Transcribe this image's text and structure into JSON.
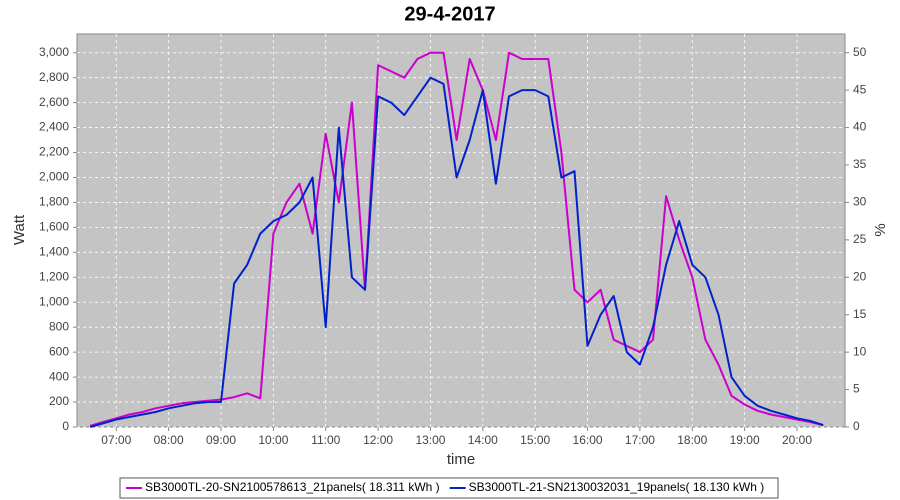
{
  "chart_data": {
    "type": "line",
    "title": "29-4-2017",
    "xlabel": "time",
    "ylabel": "Watt",
    "y2label": "%",
    "x": [
      "06:30",
      "06:45",
      "07:00",
      "07:15",
      "07:30",
      "07:45",
      "08:00",
      "08:15",
      "08:30",
      "08:45",
      "09:00",
      "09:15",
      "09:30",
      "09:45",
      "10:00",
      "10:15",
      "10:30",
      "10:45",
      "11:00",
      "11:15",
      "11:30",
      "11:45",
      "12:00",
      "12:15",
      "12:30",
      "12:45",
      "13:00",
      "13:15",
      "13:30",
      "13:45",
      "14:00",
      "14:15",
      "14:30",
      "14:45",
      "15:00",
      "15:15",
      "15:30",
      "15:45",
      "16:00",
      "16:15",
      "16:30",
      "16:45",
      "17:00",
      "17:15",
      "17:30",
      "17:45",
      "18:00",
      "18:15",
      "18:30",
      "18:45",
      "19:00",
      "19:15",
      "19:30",
      "19:45",
      "20:00",
      "20:15",
      "20:30"
    ],
    "series": [
      {
        "name": "SB3000TL-20-SN2100578613_21panels( 18.311 kWh )",
        "color": "#cc00cc",
        "values": [
          10,
          40,
          70,
          100,
          120,
          150,
          170,
          190,
          200,
          210,
          220,
          240,
          270,
          230,
          1550,
          1800,
          1950,
          1550,
          2350,
          1800,
          2600,
          1100,
          2900,
          2850,
          2800,
          2950,
          3000,
          3000,
          2300,
          2950,
          2700,
          2300,
          3000,
          2950,
          2950,
          2950,
          2200,
          1100,
          1000,
          1100,
          700,
          650,
          600,
          700,
          1850,
          1500,
          1200,
          700,
          500,
          250,
          180,
          130,
          100,
          80,
          60,
          40,
          15
        ]
      },
      {
        "name": "SB3000TL-21-SN2130032031_19panels( 18.130 kWh )",
        "color": "#0022cc",
        "values": [
          0,
          30,
          60,
          80,
          100,
          120,
          150,
          170,
          190,
          200,
          200,
          1150,
          1300,
          1550,
          1650,
          1700,
          1800,
          2000,
          800,
          2400,
          1200,
          1100,
          2650,
          2600,
          2500,
          2650,
          2800,
          2750,
          2000,
          2300,
          2700,
          1950,
          2650,
          2700,
          2700,
          2650,
          2000,
          2050,
          650,
          900,
          1050,
          600,
          500,
          800,
          1300,
          1650,
          1300,
          1200,
          900,
          400,
          250,
          170,
          130,
          100,
          70,
          50,
          15
        ]
      }
    ],
    "xlim": [
      "06:15",
      "20:55"
    ],
    "xticks": [
      "07:00",
      "08:00",
      "09:00",
      "10:00",
      "11:00",
      "12:00",
      "13:00",
      "14:00",
      "15:00",
      "16:00",
      "17:00",
      "18:00",
      "19:00",
      "20:00"
    ],
    "ylim": [
      0,
      3150
    ],
    "yticks": [
      0,
      200,
      400,
      600,
      800,
      {
        "value": 1000,
        "label": "1,000"
      },
      {
        "value": 1200,
        "label": "1,200"
      },
      {
        "value": 1400,
        "label": "1,400"
      },
      {
        "value": 1600,
        "label": "1,600"
      },
      {
        "value": 1800,
        "label": "1,800"
      },
      {
        "value": 2000,
        "label": "2,000"
      },
      {
        "value": 2200,
        "label": "2,200"
      },
      {
        "value": 2400,
        "label": "2,400"
      },
      {
        "value": 2600,
        "label": "2,600"
      },
      {
        "value": 2800,
        "label": "2,800"
      },
      {
        "value": 3000,
        "label": "3,000"
      }
    ],
    "y2lim": [
      0,
      52.5
    ],
    "y2ticks": [
      0,
      5,
      10,
      15,
      20,
      25,
      30,
      35,
      40,
      45,
      50
    ],
    "grid": true,
    "legend": "bottom"
  }
}
